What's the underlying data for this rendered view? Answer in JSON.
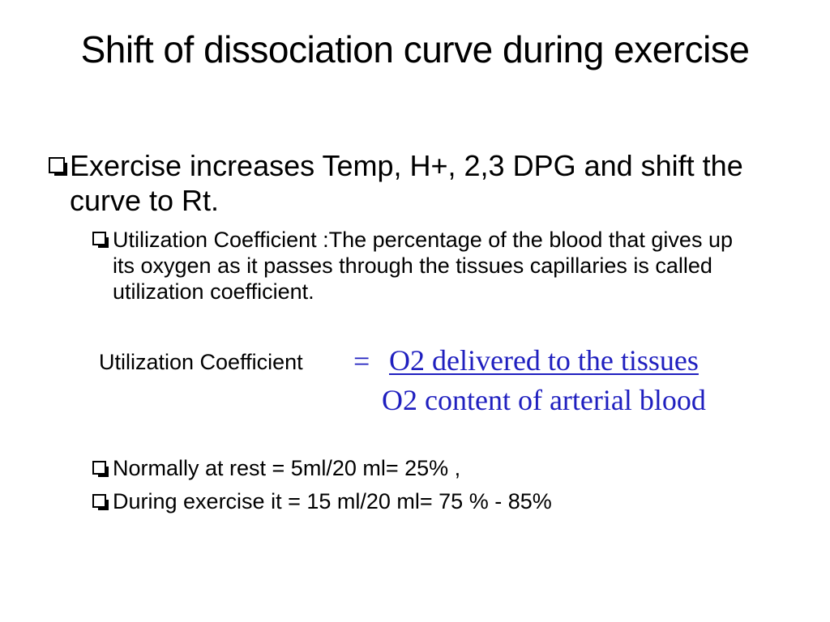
{
  "slide": {
    "title": "Shift of dissociation curve during exercise",
    "bullets": [
      {
        "level": 1,
        "icon": "checkbox-square-icon",
        "text": "Exercise increases Temp, H+, 2,3 DPG and shift the curve to Rt."
      },
      {
        "level": 2,
        "icon": "checkbox-square-icon",
        "text": "Utilization Coefficient :The percentage of the blood that gives up its oxygen as it passes through the tissues capillaries is called utilization coefficient."
      }
    ],
    "formula": {
      "label": "Utilization Coefficient",
      "equals": "=",
      "numerator": "O2 delivered to the tissues",
      "denominator": "O2 content of arterial blood",
      "color": "#1f1fbf"
    },
    "values": [
      {
        "level": 2,
        "icon": "checkbox-square-icon",
        "text": "Normally at rest = 5ml/20 ml= 25% ,"
      },
      {
        "level": 2,
        "icon": "checkbox-square-icon",
        "text": "During exercise it = 15 ml/20 ml= 75 % - 85%"
      }
    ]
  }
}
